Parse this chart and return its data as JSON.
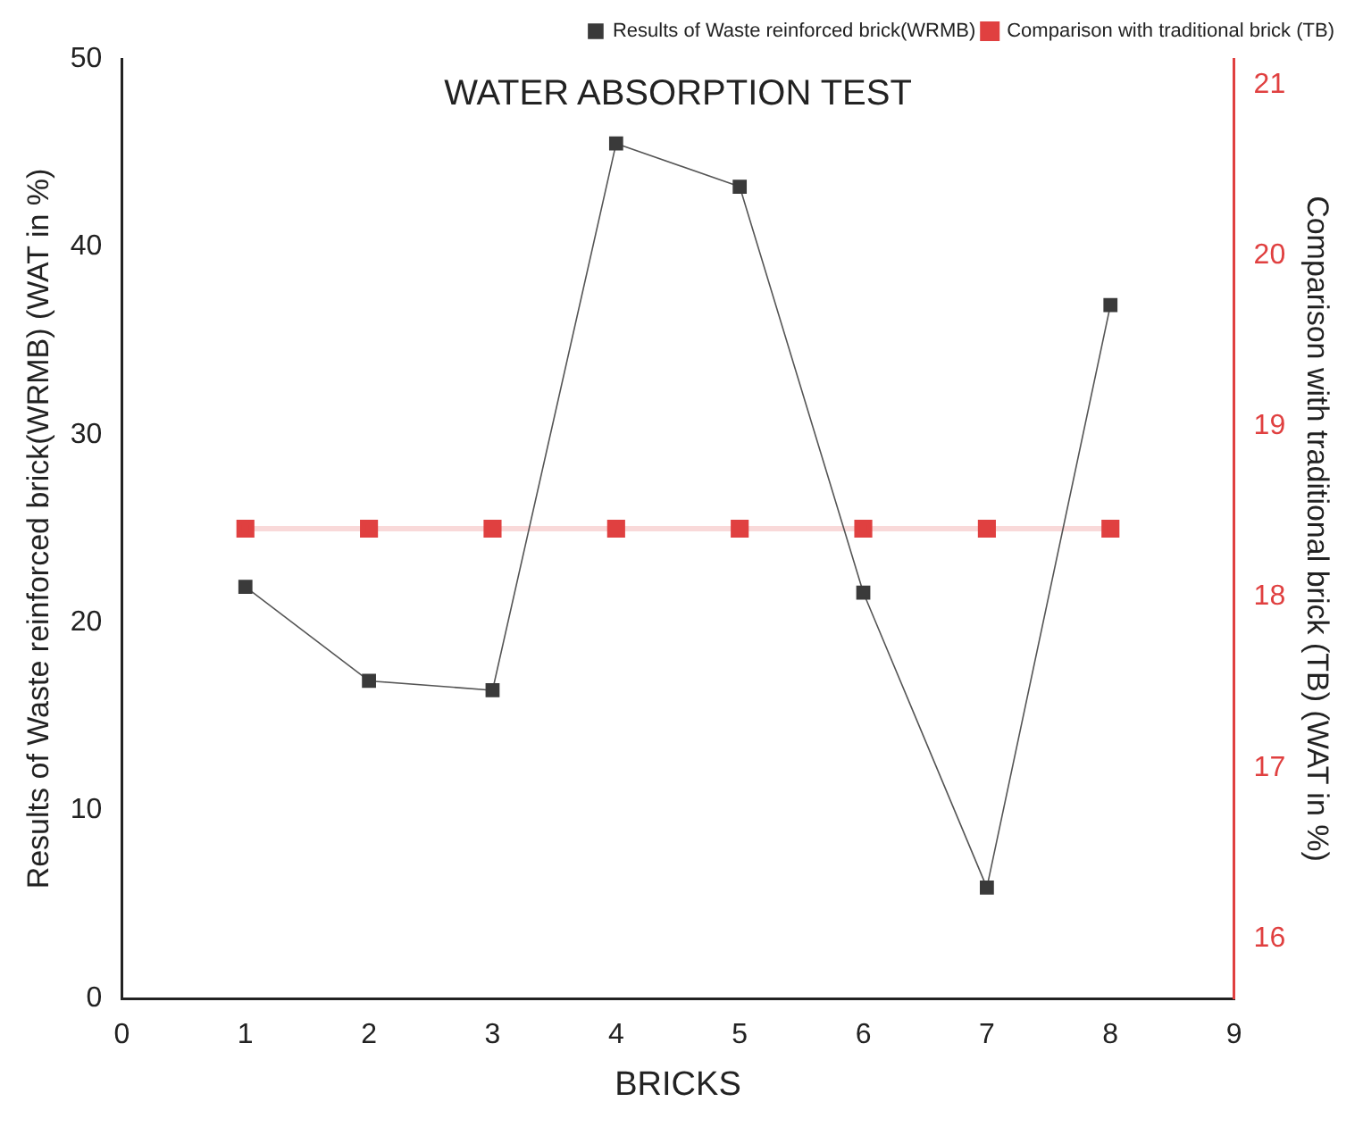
{
  "chart_data": {
    "type": "line",
    "title": "WATER ABSORPTION TEST",
    "xlabel": "BRICKS",
    "ylabel": "Results of Waste reinforced brick(WRMB) (WAT in %)",
    "y2label": "Comparison with traditional brick (TB) (WAT in %)",
    "x": [
      1,
      2,
      3,
      4,
      5,
      6,
      7,
      8
    ],
    "series": [
      {
        "name": "Results of Waste reinforced brick(WRMB)",
        "color": "#3a3a3a",
        "values": [
          21.9,
          16.9,
          16.4,
          45.5,
          43.2,
          21.6,
          5.9,
          36.9
        ]
      },
      {
        "name": "Comparison with traditional brick (TB)",
        "color": "#e04040",
        "axis": "y2",
        "values": [
          18.4,
          18.4,
          18.4,
          18.4,
          18.4,
          18.4,
          18.4,
          18.4
        ]
      }
    ],
    "xlim": [
      0,
      9
    ],
    "xticks": [
      0,
      1,
      2,
      3,
      4,
      5,
      6,
      7,
      8,
      9
    ],
    "ylim": [
      0,
      50
    ],
    "yticks": [
      0,
      10,
      20,
      30,
      40,
      50
    ],
    "y2lim": [
      15.65,
      21.15
    ],
    "y2ticks": [
      16,
      17,
      18,
      19,
      20,
      21
    ],
    "marker": "square",
    "line_style": "solid",
    "legend": "top right",
    "grid": false
  }
}
